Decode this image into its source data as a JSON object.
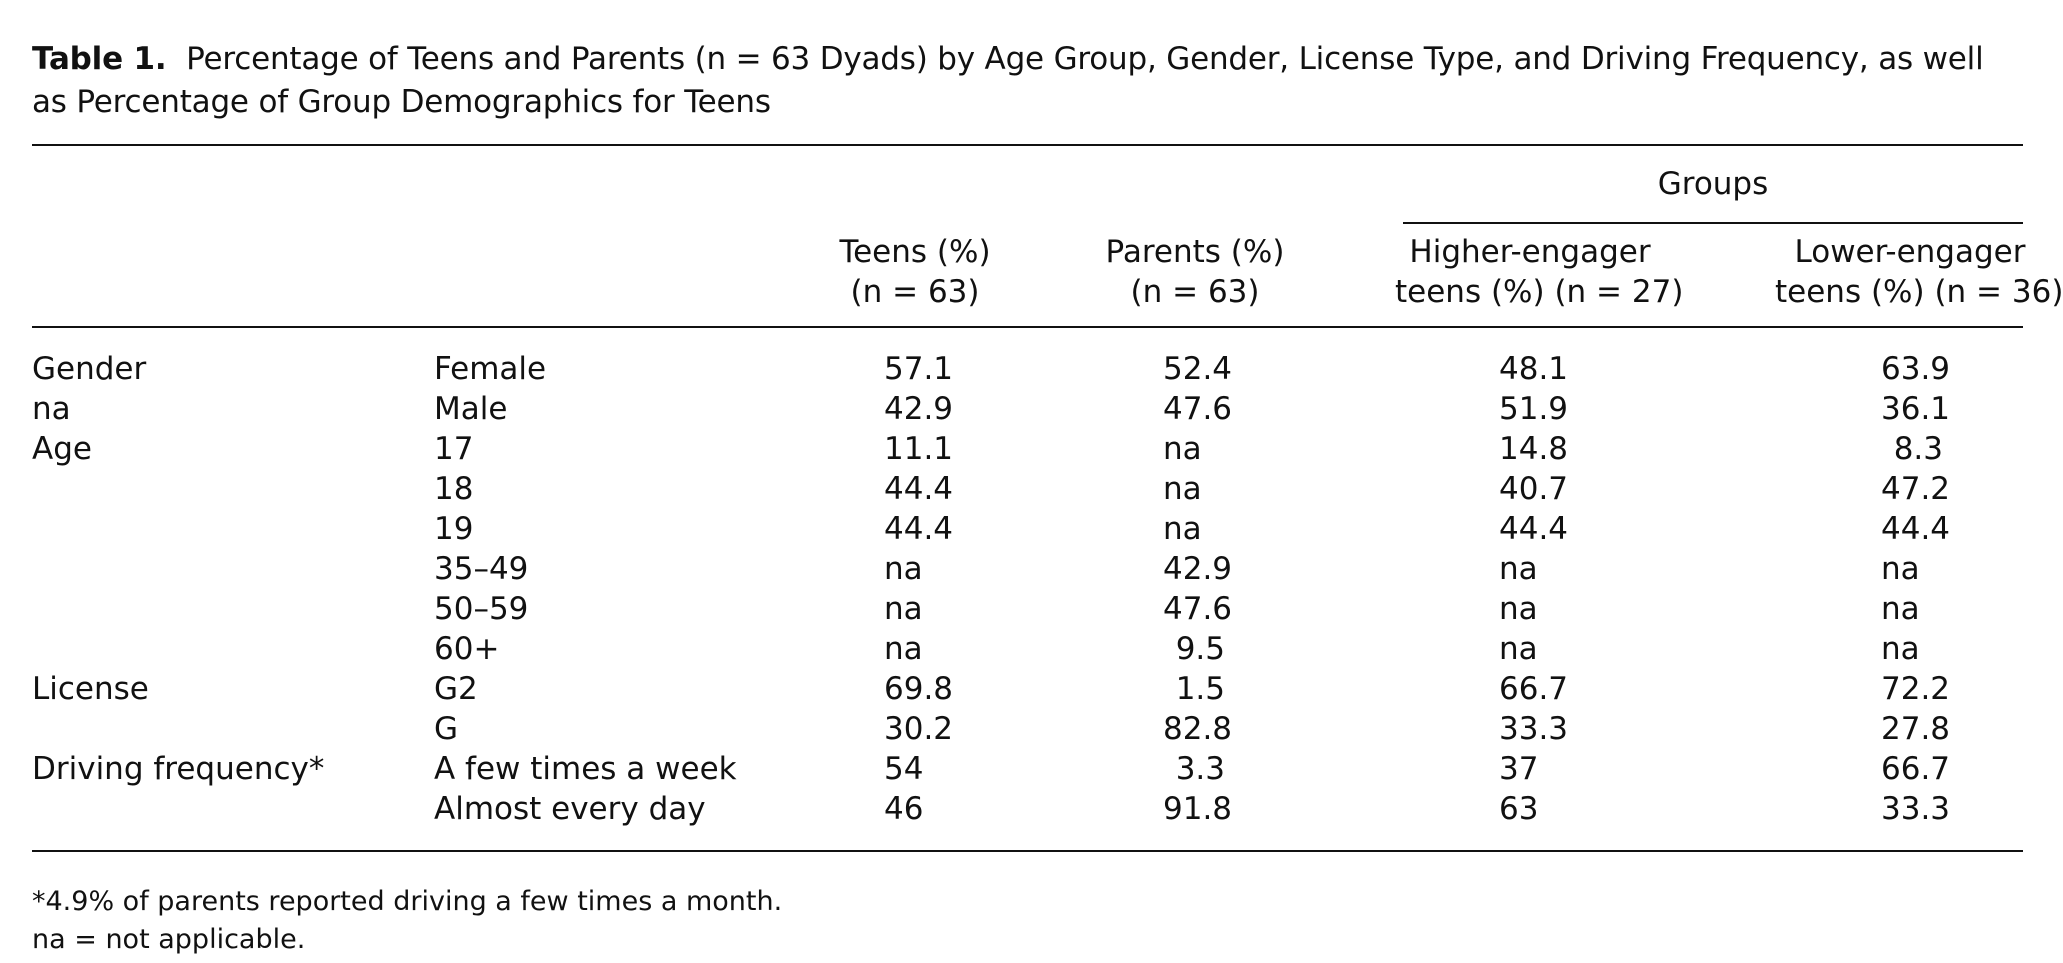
{
  "caption": {
    "label": "Table 1.",
    "text": "Percentage of Teens and Parents (n = 63 Dyads) by Age Group, Gender, License Type, and Driving Frequency, as well as Percentage of Group Demographics for Teens"
  },
  "header": {
    "groups": "Groups",
    "teens": [
      "Teens (%)",
      "(n = 63)"
    ],
    "parents": [
      "Parents (%)",
      "(n = 63)"
    ],
    "higher": [
      "Higher-engager",
      "teens (%) (n = 27)"
    ],
    "lower": [
      "Lower-engager",
      "teens (%) (n = 36)"
    ]
  },
  "rows": [
    {
      "category": "Gender",
      "sub": "Female",
      "teens": "57.1",
      "parents": "52.4",
      "higher": "48.1",
      "lower": "63.9"
    },
    {
      "category": "na",
      "sub": "Male",
      "teens": "42.9",
      "parents": "47.6",
      "higher": "51.9",
      "lower": "36.1"
    },
    {
      "category": "Age",
      "sub": "17",
      "teens": "11.1",
      "parents": "na",
      "higher": "14.8",
      "lower": "8.3"
    },
    {
      "category": "",
      "sub": "18",
      "teens": "44.4",
      "parents": "na",
      "higher": "40.7",
      "lower": "47.2"
    },
    {
      "category": "",
      "sub": "19",
      "teens": "44.4",
      "parents": "na",
      "higher": "44.4",
      "lower": "44.4"
    },
    {
      "category": "",
      "sub": "35–49",
      "teens": "na",
      "parents": "42.9",
      "higher": "na",
      "lower": "na"
    },
    {
      "category": "",
      "sub": "50–59",
      "teens": "na",
      "parents": "47.6",
      "higher": "na",
      "lower": "na"
    },
    {
      "category": "",
      "sub": "60+",
      "teens": "na",
      "parents": "9.5",
      "higher": "na",
      "lower": "na"
    },
    {
      "category": "License",
      "sub": "G2",
      "teens": "69.8",
      "parents": "1.5",
      "higher": "66.7",
      "lower": "72.2"
    },
    {
      "category": "",
      "sub": "G",
      "teens": "30.2",
      "parents": "82.8",
      "higher": "33.3",
      "lower": "27.8"
    },
    {
      "category": "Driving frequency*",
      "sub": "A few times a week",
      "teens": "54",
      "parents": "3.3",
      "higher": "37",
      "lower": "66.7"
    },
    {
      "category": "",
      "sub": "Almost every day",
      "teens": "46",
      "parents": "91.8",
      "higher": "63",
      "lower": "33.3"
    }
  ],
  "footnotes": [
    "*4.9% of parents reported driving a few times a month.",
    "na = not applicable."
  ]
}
